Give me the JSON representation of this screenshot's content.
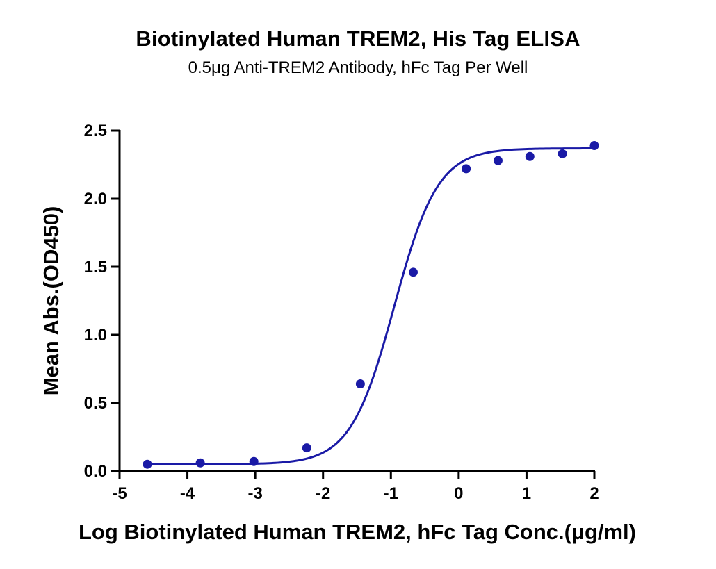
{
  "chart_data": {
    "type": "scatter",
    "title": "Biotinylated Human TREM2, His Tag ELISA",
    "subtitle": "0.5μg Anti-TREM2 Antibody, hFc Tag Per Well",
    "xlabel": "Log Biotinylated Human TREM2, hFc Tag Conc.(μg/ml)",
    "ylabel": "Mean Abs.(OD450)",
    "xlim": [
      -5,
      2
    ],
    "ylim": [
      0,
      2.5
    ],
    "xticks": [
      "-5",
      "-4",
      "-3",
      "-2",
      "-1",
      "0",
      "1",
      "2"
    ],
    "yticks": [
      "0.0",
      "0.5",
      "1.0",
      "1.5",
      "2.0",
      "2.5"
    ],
    "series": [
      {
        "color": "#1a1aa6",
        "x": [
          -4.59,
          -3.81,
          -3.02,
          -2.24,
          -1.45,
          -0.67,
          0.11,
          0.58,
          1.05,
          1.53,
          2.0
        ],
        "y": [
          0.05,
          0.06,
          0.07,
          0.17,
          0.64,
          1.46,
          2.22,
          2.28,
          2.31,
          2.33,
          2.39
        ]
      }
    ],
    "fit_curve": {
      "type": "four-parameter logistic",
      "bottom": 0.05,
      "top": 2.37,
      "log_ec50": -0.95,
      "hill_slope": 1.35
    },
    "grid": false
  }
}
